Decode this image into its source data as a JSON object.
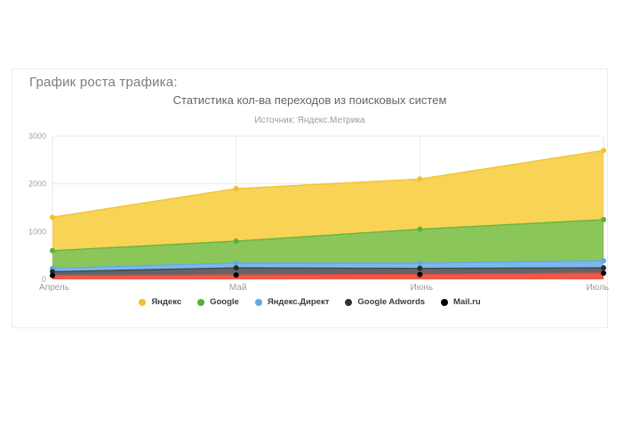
{
  "page": {
    "heading": "График роста трафика:"
  },
  "chart": {
    "title": "Статистика кол-ва переходов из поисковых систем",
    "subtitle": "Источник: Яндекс.Метрика"
  },
  "chart_data": {
    "type": "area",
    "title": "Статистика кол-ва переходов из поисковых систем",
    "subtitle": "Источник: Яндекс.Метрика",
    "categories": [
      "Апрель",
      "Май",
      "Июнь",
      "Июль"
    ],
    "series": [
      {
        "id": "yandex",
        "name": "Яндекс",
        "values": [
          1300,
          1900,
          2100,
          2700
        ],
        "area_color": "#f8d356",
        "line_color": "#f0c335",
        "marker_color": "#f2c12e",
        "legend_color": "#f2c12e"
      },
      {
        "id": "google",
        "name": "Google",
        "values": [
          600,
          800,
          1050,
          1250
        ],
        "area_color": "#8bc65a",
        "line_color": "#6ab43e",
        "marker_color": "#55b237",
        "legend_color": "#55b237"
      },
      {
        "id": "yandex-direct",
        "name": "Яндекс.Директ",
        "values": [
          230,
          340,
          340,
          390
        ],
        "area_color": "#7ab8ee",
        "line_color": "#62aae9",
        "marker_color": "#60a9e9",
        "legend_color": "#60a9e9"
      },
      {
        "id": "google-adwords",
        "name": "Google Adwords",
        "values": [
          160,
          240,
          230,
          240
        ],
        "area_color": "#626468",
        "line_color": "#46484c",
        "marker_color": "#2b2b2b",
        "legend_color": "#333333"
      },
      {
        "id": "mailru",
        "name": "Mail.ru",
        "values": [
          80,
          90,
          100,
          130
        ],
        "area_color": "#f0594a",
        "line_color": "#e64d3e",
        "marker_color": "#000000",
        "legend_color": "#000000"
      }
    ],
    "ylim": [
      0,
      3000
    ],
    "yticks": [
      0,
      1000,
      2000,
      3000
    ],
    "grid": true,
    "legend_position": "bottom",
    "gridline_color": "#e9e9e9",
    "axis_label_color": "#a2a2a2",
    "xlabel": "",
    "ylabel": ""
  }
}
